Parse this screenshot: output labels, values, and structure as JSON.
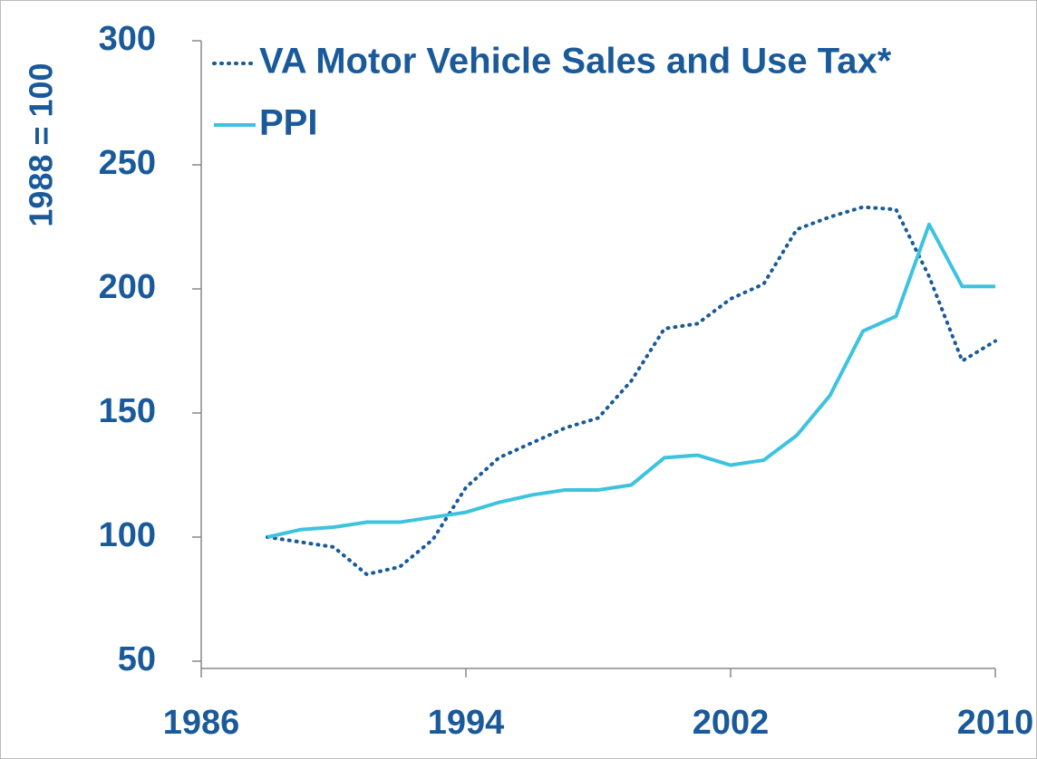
{
  "chart_data": {
    "type": "line",
    "y_label": "1988 = 100",
    "x": [
      1988,
      1989,
      1990,
      1991,
      1992,
      1993,
      1994,
      1995,
      1996,
      1997,
      1998,
      1999,
      2000,
      2001,
      2002,
      2003,
      2004,
      2005,
      2006,
      2007,
      2008,
      2009,
      2010
    ],
    "series": [
      {
        "name": "VA Motor Vehicle Sales and Use Tax*",
        "color": "#1a5a9a",
        "style": "dotted",
        "values": [
          100,
          98,
          96,
          85,
          88,
          99,
          120,
          132,
          138,
          144,
          148,
          163,
          184,
          186,
          196,
          202,
          224,
          229,
          233,
          232,
          205,
          171,
          179
        ]
      },
      {
        "name": "PPI",
        "color": "#3ec3df",
        "style": "solid",
        "values": [
          100,
          103,
          104,
          106,
          106,
          108,
          110,
          114,
          117,
          119,
          119,
          121,
          132,
          133,
          129,
          131,
          141,
          157,
          183,
          189,
          226,
          201,
          201
        ]
      }
    ],
    "xlim": [
      1986,
      2010
    ],
    "xticks": [
      1986,
      1994,
      2002,
      2010
    ],
    "ylim": [
      50,
      300
    ],
    "yticks": [
      50,
      100,
      150,
      200,
      250,
      300
    ],
    "legend": "top-left",
    "grid": false
  }
}
